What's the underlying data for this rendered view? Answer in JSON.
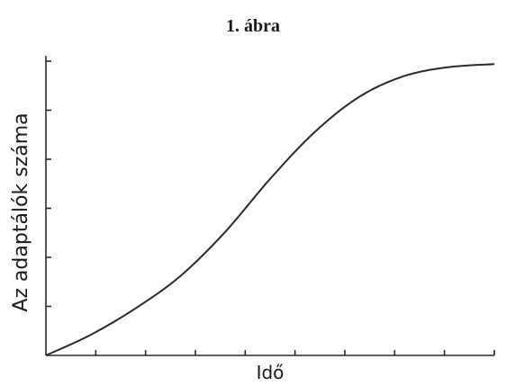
{
  "chart_data": {
    "type": "line",
    "title": "1. ábra",
    "xlabel": "Idő",
    "ylabel": "Az adaptálók száma",
    "x_ticks": 9,
    "y_ticks": 6,
    "grid": false,
    "xlim": [
      0,
      1
    ],
    "ylim": [
      0,
      1
    ],
    "series": [
      {
        "x": [
          0,
          0.1,
          0.2,
          0.3,
          0.4,
          0.5,
          0.6,
          0.7,
          0.8,
          0.9,
          1.0
        ],
        "values": [
          0,
          0.07,
          0.16,
          0.27,
          0.42,
          0.6,
          0.76,
          0.88,
          0.95,
          0.98,
          0.99
        ]
      }
    ]
  }
}
